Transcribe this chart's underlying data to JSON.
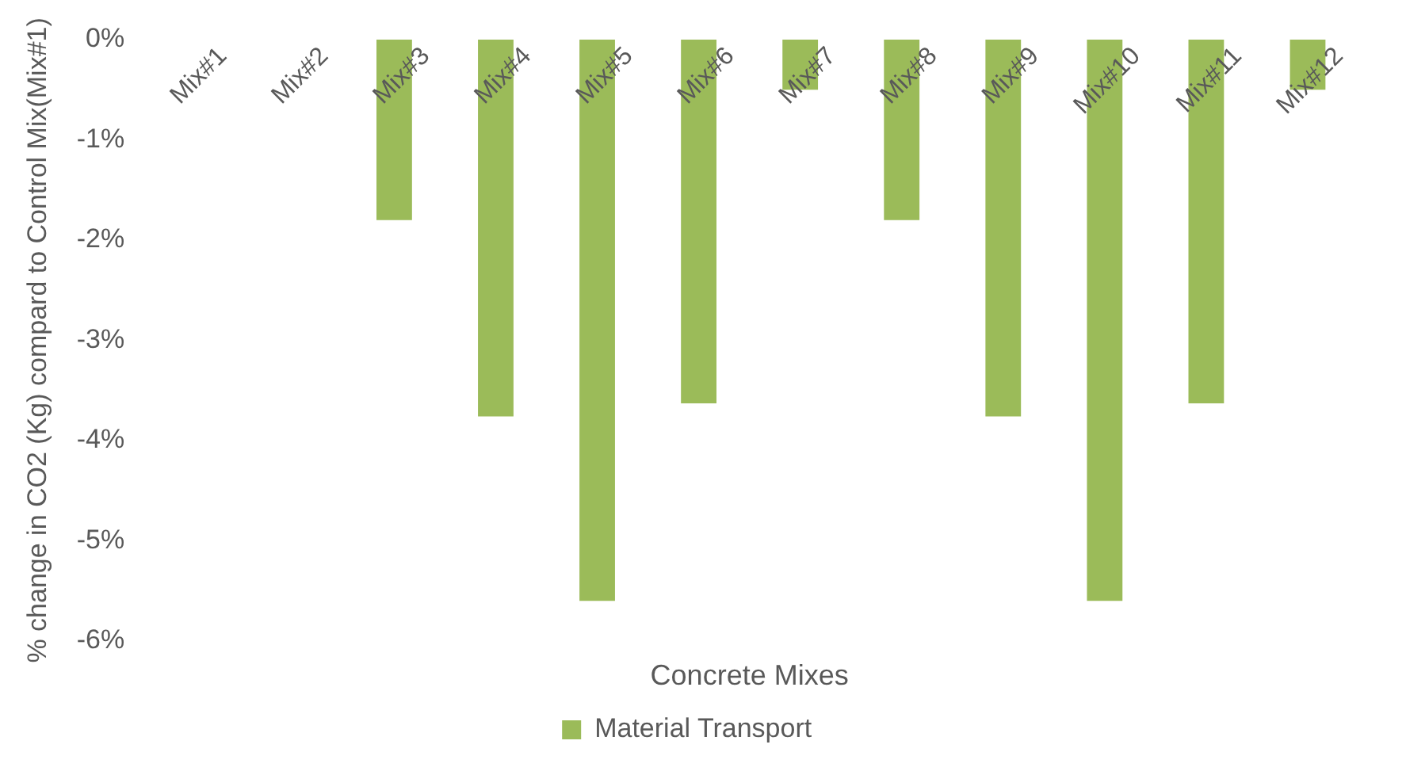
{
  "chart_data": {
    "type": "bar",
    "xlabel": "Concrete Mixes",
    "ylabel": "% change in CO2 (Kg) compard to Control Mix(Mix#1)",
    "categories": [
      "Mix#1",
      "Mix#2",
      "Mix#3",
      "Mix#4",
      "Mix#5",
      "Mix#6",
      "Mix#7",
      "Mix#8",
      "Mix#9",
      "Mix#10",
      "Mix#11",
      "Mix#12"
    ],
    "series": [
      {
        "name": "Material Transport",
        "color": "#9bbb59",
        "values": [
          0,
          0,
          -1.8,
          -3.76,
          -5.6,
          -3.63,
          -0.5,
          -1.8,
          -3.76,
          -5.6,
          -3.63,
          -0.5
        ]
      }
    ],
    "ylim": [
      -6,
      0
    ],
    "yticks": [
      {
        "value": -6,
        "label": "-6%"
      },
      {
        "value": -5,
        "label": "-5%"
      },
      {
        "value": -4,
        "label": "-4%"
      },
      {
        "value": -3,
        "label": "-3%"
      },
      {
        "value": -2,
        "label": "-2%"
      },
      {
        "value": -1,
        "label": "-1%"
      },
      {
        "value": 0,
        "label": "0%"
      }
    ],
    "grid": false,
    "legend": "bottom"
  }
}
